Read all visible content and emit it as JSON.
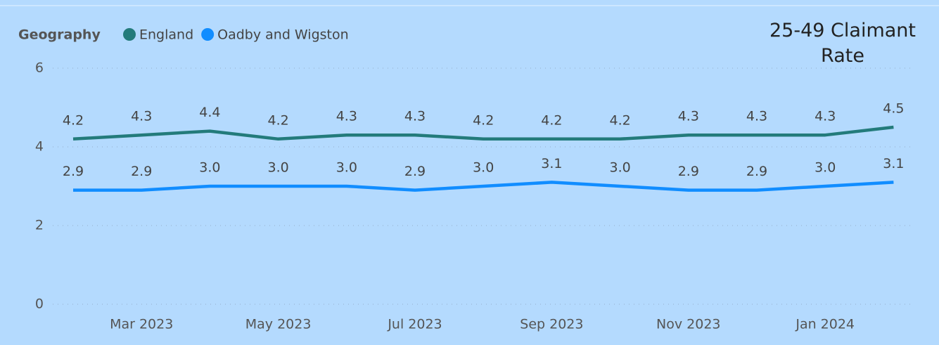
{
  "chart_data": {
    "type": "line",
    "title": "25-49 Claimant Rate",
    "legend_title": "Geography",
    "categories": [
      null,
      "Mar 2023",
      null,
      "May 2023",
      null,
      "Jul 2023",
      null,
      "Sep 2023",
      null,
      "Nov 2023",
      null,
      "Jan 2024",
      null
    ],
    "series": [
      {
        "name": "England",
        "color": "#237b7b",
        "values": [
          4.2,
          4.3,
          4.4,
          4.2,
          4.3,
          4.3,
          4.2,
          4.2,
          4.2,
          4.3,
          4.3,
          4.3,
          4.5
        ]
      },
      {
        "name": "Oadby and Wigston",
        "color": "#118dff",
        "values": [
          2.9,
          2.9,
          3.0,
          3.0,
          3.0,
          2.9,
          3.0,
          3.1,
          3.0,
          2.9,
          2.9,
          3.0,
          3.1
        ],
        "value_labels": [
          "2.9",
          "2.9",
          "3.0",
          "3.0",
          "3.0",
          "2.9",
          "3.0",
          "3.1",
          "3.0",
          "2.9",
          "2.9",
          "3.0",
          "3.1"
        ]
      }
    ],
    "ylim": [
      0,
      6
    ],
    "yticks": [
      0,
      2,
      4,
      6
    ],
    "grid": true,
    "legend": "top-left"
  }
}
